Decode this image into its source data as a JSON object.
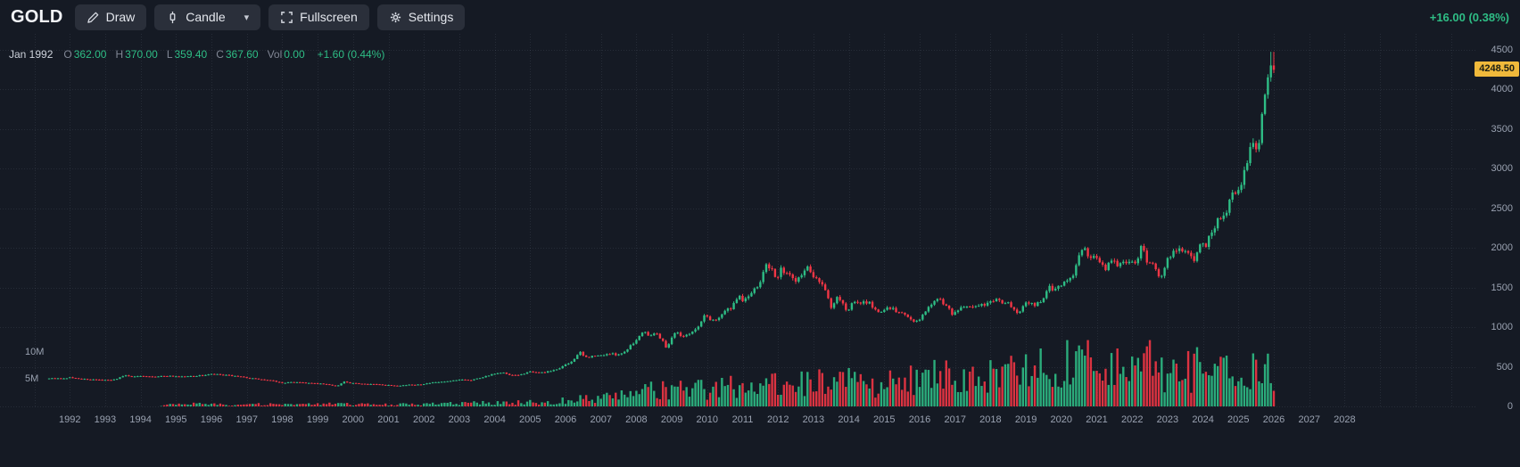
{
  "header": {
    "symbol": "GOLD",
    "buttons": {
      "draw": "Draw",
      "candle": "Candle",
      "fullscreen": "Fullscreen",
      "settings": "Settings"
    },
    "change_text": "+16.00 (0.38%)"
  },
  "legend": {
    "date": "Jan 1992",
    "o_label": "O",
    "o": "362.00",
    "h_label": "H",
    "h": "370.00",
    "l_label": "L",
    "l": "359.40",
    "c_label": "C",
    "c": "367.60",
    "vol_label": "Vol",
    "vol": "0.00",
    "change": "+1.60 (0.44%)"
  },
  "colors": {
    "background": "#151a24",
    "button": "#2a2f3a",
    "up": "#2ebd85",
    "down": "#f23645",
    "axis_text": "#9aa2b1",
    "badge_bg": "#f0b93b",
    "badge_text": "#1a1d13",
    "grid": "rgba(140,150,168,0.15)"
  },
  "axes": {
    "price_ticks": [
      "4500",
      "4000",
      "3500",
      "3000",
      "2500",
      "2000",
      "1500",
      "1000",
      "500",
      "0"
    ],
    "volume_ticks": [
      "10M",
      "5M"
    ],
    "years": [
      "1992",
      "1993",
      "1994",
      "1995",
      "1996",
      "1997",
      "1998",
      "1999",
      "2000",
      "2001",
      "2002",
      "2003",
      "2004",
      "2005",
      "2006",
      "2007",
      "2008",
      "2009",
      "2010",
      "2011",
      "2012",
      "2013",
      "2014",
      "2015",
      "2016",
      "2017",
      "2018",
      "2019",
      "2020",
      "2021",
      "2022",
      "2023",
      "2024",
      "2025",
      "2026",
      "2027",
      "2028"
    ]
  },
  "chart_data": {
    "type": "candlestick",
    "symbol": "GOLD",
    "timeframe": "monthly",
    "x_range": [
      1991.4,
      2026.0
    ],
    "ylim": [
      0,
      4500
    ],
    "volume_ylim_millions": [
      0,
      12.5
    ],
    "up_color": "#2ebd85",
    "down_color": "#f23645",
    "first_candle": {
      "date": "Jan 1992",
      "open": 362.0,
      "high": 370.0,
      "low": 359.4,
      "close": 367.6,
      "volume": 0.0
    },
    "last_close": 4248.5,
    "last_price_label": "4248.50",
    "price_anchors": [
      [
        1991.4,
        358
      ],
      [
        1991.7,
        352
      ],
      [
        1991.9,
        357
      ],
      [
        1992.0,
        362
      ],
      [
        1992.2,
        352
      ],
      [
        1992.5,
        343
      ],
      [
        1992.8,
        335
      ],
      [
        1993.2,
        330
      ],
      [
        1993.45,
        372
      ],
      [
        1993.6,
        392
      ],
      [
        1993.8,
        372
      ],
      [
        1994.0,
        386
      ],
      [
        1994.4,
        378
      ],
      [
        1994.8,
        384
      ],
      [
        1995.2,
        377
      ],
      [
        1995.6,
        385
      ],
      [
        1996.05,
        408
      ],
      [
        1996.5,
        390
      ],
      [
        1996.9,
        368
      ],
      [
        1997.3,
        345
      ],
      [
        1997.7,
        324
      ],
      [
        1998.0,
        297
      ],
      [
        1998.4,
        308
      ],
      [
        1998.8,
        293
      ],
      [
        1999.2,
        282
      ],
      [
        1999.55,
        256
      ],
      [
        1999.75,
        312
      ],
      [
        1999.9,
        292
      ],
      [
        2000.1,
        290
      ],
      [
        2000.5,
        282
      ],
      [
        2000.9,
        272
      ],
      [
        2001.25,
        262
      ],
      [
        2001.6,
        272
      ],
      [
        2001.9,
        278
      ],
      [
        2002.3,
        302
      ],
      [
        2002.7,
        315
      ],
      [
        2002.95,
        332
      ],
      [
        2003.1,
        342
      ],
      [
        2003.3,
        330
      ],
      [
        2003.6,
        362
      ],
      [
        2003.95,
        408
      ],
      [
        2004.25,
        422
      ],
      [
        2004.45,
        388
      ],
      [
        2004.75,
        402
      ],
      [
        2004.95,
        438
      ],
      [
        2005.1,
        426
      ],
      [
        2005.4,
        428
      ],
      [
        2005.7,
        456
      ],
      [
        2005.95,
        513
      ],
      [
        2006.15,
        555
      ],
      [
        2006.4,
        685
      ],
      [
        2006.55,
        615
      ],
      [
        2006.75,
        632
      ],
      [
        2006.95,
        638
      ],
      [
        2007.2,
        665
      ],
      [
        2007.45,
        655
      ],
      [
        2007.65,
        680
      ],
      [
        2007.85,
        780
      ],
      [
        2008.0,
        835
      ],
      [
        2008.2,
        968
      ],
      [
        2008.35,
        900
      ],
      [
        2008.55,
        928
      ],
      [
        2008.75,
        830
      ],
      [
        2008.85,
        722
      ],
      [
        2009.0,
        880
      ],
      [
        2009.15,
        940
      ],
      [
        2009.3,
        885
      ],
      [
        2009.55,
        930
      ],
      [
        2009.75,
        1000
      ],
      [
        2009.95,
        1175
      ],
      [
        2010.1,
        1080
      ],
      [
        2010.3,
        1115
      ],
      [
        2010.5,
        1205
      ],
      [
        2010.7,
        1245
      ],
      [
        2010.9,
        1385
      ],
      [
        2011.05,
        1330
      ],
      [
        2011.25,
        1440
      ],
      [
        2011.45,
        1500
      ],
      [
        2011.65,
        1825
      ],
      [
        2011.75,
        1770
      ],
      [
        2011.85,
        1720
      ],
      [
        2011.95,
        1565
      ],
      [
        2012.1,
        1738
      ],
      [
        2012.3,
        1660
      ],
      [
        2012.5,
        1600
      ],
      [
        2012.7,
        1690
      ],
      [
        2012.85,
        1775
      ],
      [
        2013.0,
        1660
      ],
      [
        2013.2,
        1590
      ],
      [
        2013.35,
        1470
      ],
      [
        2013.5,
        1230
      ],
      [
        2013.7,
        1390
      ],
      [
        2013.8,
        1325
      ],
      [
        2013.95,
        1200
      ],
      [
        2014.15,
        1325
      ],
      [
        2014.35,
        1290
      ],
      [
        2014.55,
        1325
      ],
      [
        2014.75,
        1215
      ],
      [
        2014.95,
        1185
      ],
      [
        2015.1,
        1275
      ],
      [
        2015.35,
        1190
      ],
      [
        2015.55,
        1170
      ],
      [
        2015.75,
        1115
      ],
      [
        2015.9,
        1062
      ],
      [
        2016.1,
        1155
      ],
      [
        2016.3,
        1290
      ],
      [
        2016.55,
        1360
      ],
      [
        2016.75,
        1270
      ],
      [
        2016.95,
        1150
      ],
      [
        2017.15,
        1250
      ],
      [
        2017.4,
        1265
      ],
      [
        2017.7,
        1270
      ],
      [
        2017.95,
        1305
      ],
      [
        2018.1,
        1340
      ],
      [
        2018.3,
        1325
      ],
      [
        2018.5,
        1300
      ],
      [
        2018.7,
        1190
      ],
      [
        2018.85,
        1220
      ],
      [
        2019.0,
        1320
      ],
      [
        2019.25,
        1290
      ],
      [
        2019.45,
        1310
      ],
      [
        2019.65,
        1525
      ],
      [
        2019.8,
        1470
      ],
      [
        2019.95,
        1520
      ],
      [
        2020.15,
        1590
      ],
      [
        2020.35,
        1680
      ],
      [
        2020.55,
        1975
      ],
      [
        2020.62,
        2025
      ],
      [
        2020.8,
        1885
      ],
      [
        2020.95,
        1895
      ],
      [
        2021.1,
        1845
      ],
      [
        2021.25,
        1710
      ],
      [
        2021.45,
        1900
      ],
      [
        2021.6,
        1765
      ],
      [
        2021.75,
        1812
      ],
      [
        2021.95,
        1820
      ],
      [
        2022.1,
        1795
      ],
      [
        2022.2,
        1940
      ],
      [
        2022.27,
        2045
      ],
      [
        2022.4,
        1840
      ],
      [
        2022.6,
        1805
      ],
      [
        2022.75,
        1660
      ],
      [
        2022.85,
        1630
      ],
      [
        2022.95,
        1815
      ],
      [
        2023.1,
        1925
      ],
      [
        2023.3,
        1985
      ],
      [
        2023.45,
        1960
      ],
      [
        2023.6,
        1915
      ],
      [
        2023.75,
        1850
      ],
      [
        2023.85,
        1985
      ],
      [
        2023.95,
        2060
      ],
      [
        2024.1,
        2040
      ],
      [
        2024.25,
        2230
      ],
      [
        2024.4,
        2325
      ],
      [
        2024.55,
        2425
      ],
      [
        2024.7,
        2500
      ],
      [
        2024.8,
        2740
      ],
      [
        2024.9,
        2650
      ],
      [
        2025.0,
        2750
      ],
      [
        2025.1,
        2855
      ],
      [
        2025.25,
        3120
      ],
      [
        2025.35,
        3290
      ],
      [
        2025.5,
        3280
      ],
      [
        2025.6,
        3385
      ],
      [
        2025.7,
        3860
      ],
      [
        2025.78,
        4010
      ],
      [
        2025.87,
        4310
      ],
      [
        2025.95,
        4248.5
      ]
    ],
    "volume_anchors_millions": [
      [
        1991.4,
        0.0
      ],
      [
        1994.5,
        0.0
      ],
      [
        1994.8,
        0.3
      ],
      [
        1995.5,
        0.45
      ],
      [
        1996.5,
        0.35
      ],
      [
        1997.5,
        0.4
      ],
      [
        1998.5,
        0.35
      ],
      [
        1999.6,
        0.5
      ],
      [
        2000.5,
        0.35
      ],
      [
        2001.5,
        0.4
      ],
      [
        2002.5,
        0.5
      ],
      [
        2003.5,
        0.65
      ],
      [
        2004.5,
        0.7
      ],
      [
        2005.5,
        0.9
      ],
      [
        2006.5,
        1.5
      ],
      [
        2007.5,
        1.9
      ],
      [
        2008.5,
        3.0
      ],
      [
        2009.5,
        3.3
      ],
      [
        2010.5,
        3.7
      ],
      [
        2011.5,
        4.3
      ],
      [
        2012.5,
        3.9
      ],
      [
        2013.5,
        5.3
      ],
      [
        2014.5,
        4.3
      ],
      [
        2015.5,
        4.9
      ],
      [
        2016.5,
        5.8
      ],
      [
        2017.5,
        5.0
      ],
      [
        2018.5,
        6.2
      ],
      [
        2019.5,
        7.2
      ],
      [
        2020.3,
        9.2
      ],
      [
        2020.8,
        8.0
      ],
      [
        2021.5,
        7.0
      ],
      [
        2022.5,
        7.8
      ],
      [
        2023.5,
        6.6
      ],
      [
        2024.5,
        7.6
      ],
      [
        2025.5,
        8.4
      ],
      [
        2026.0,
        7.2
      ]
    ]
  }
}
